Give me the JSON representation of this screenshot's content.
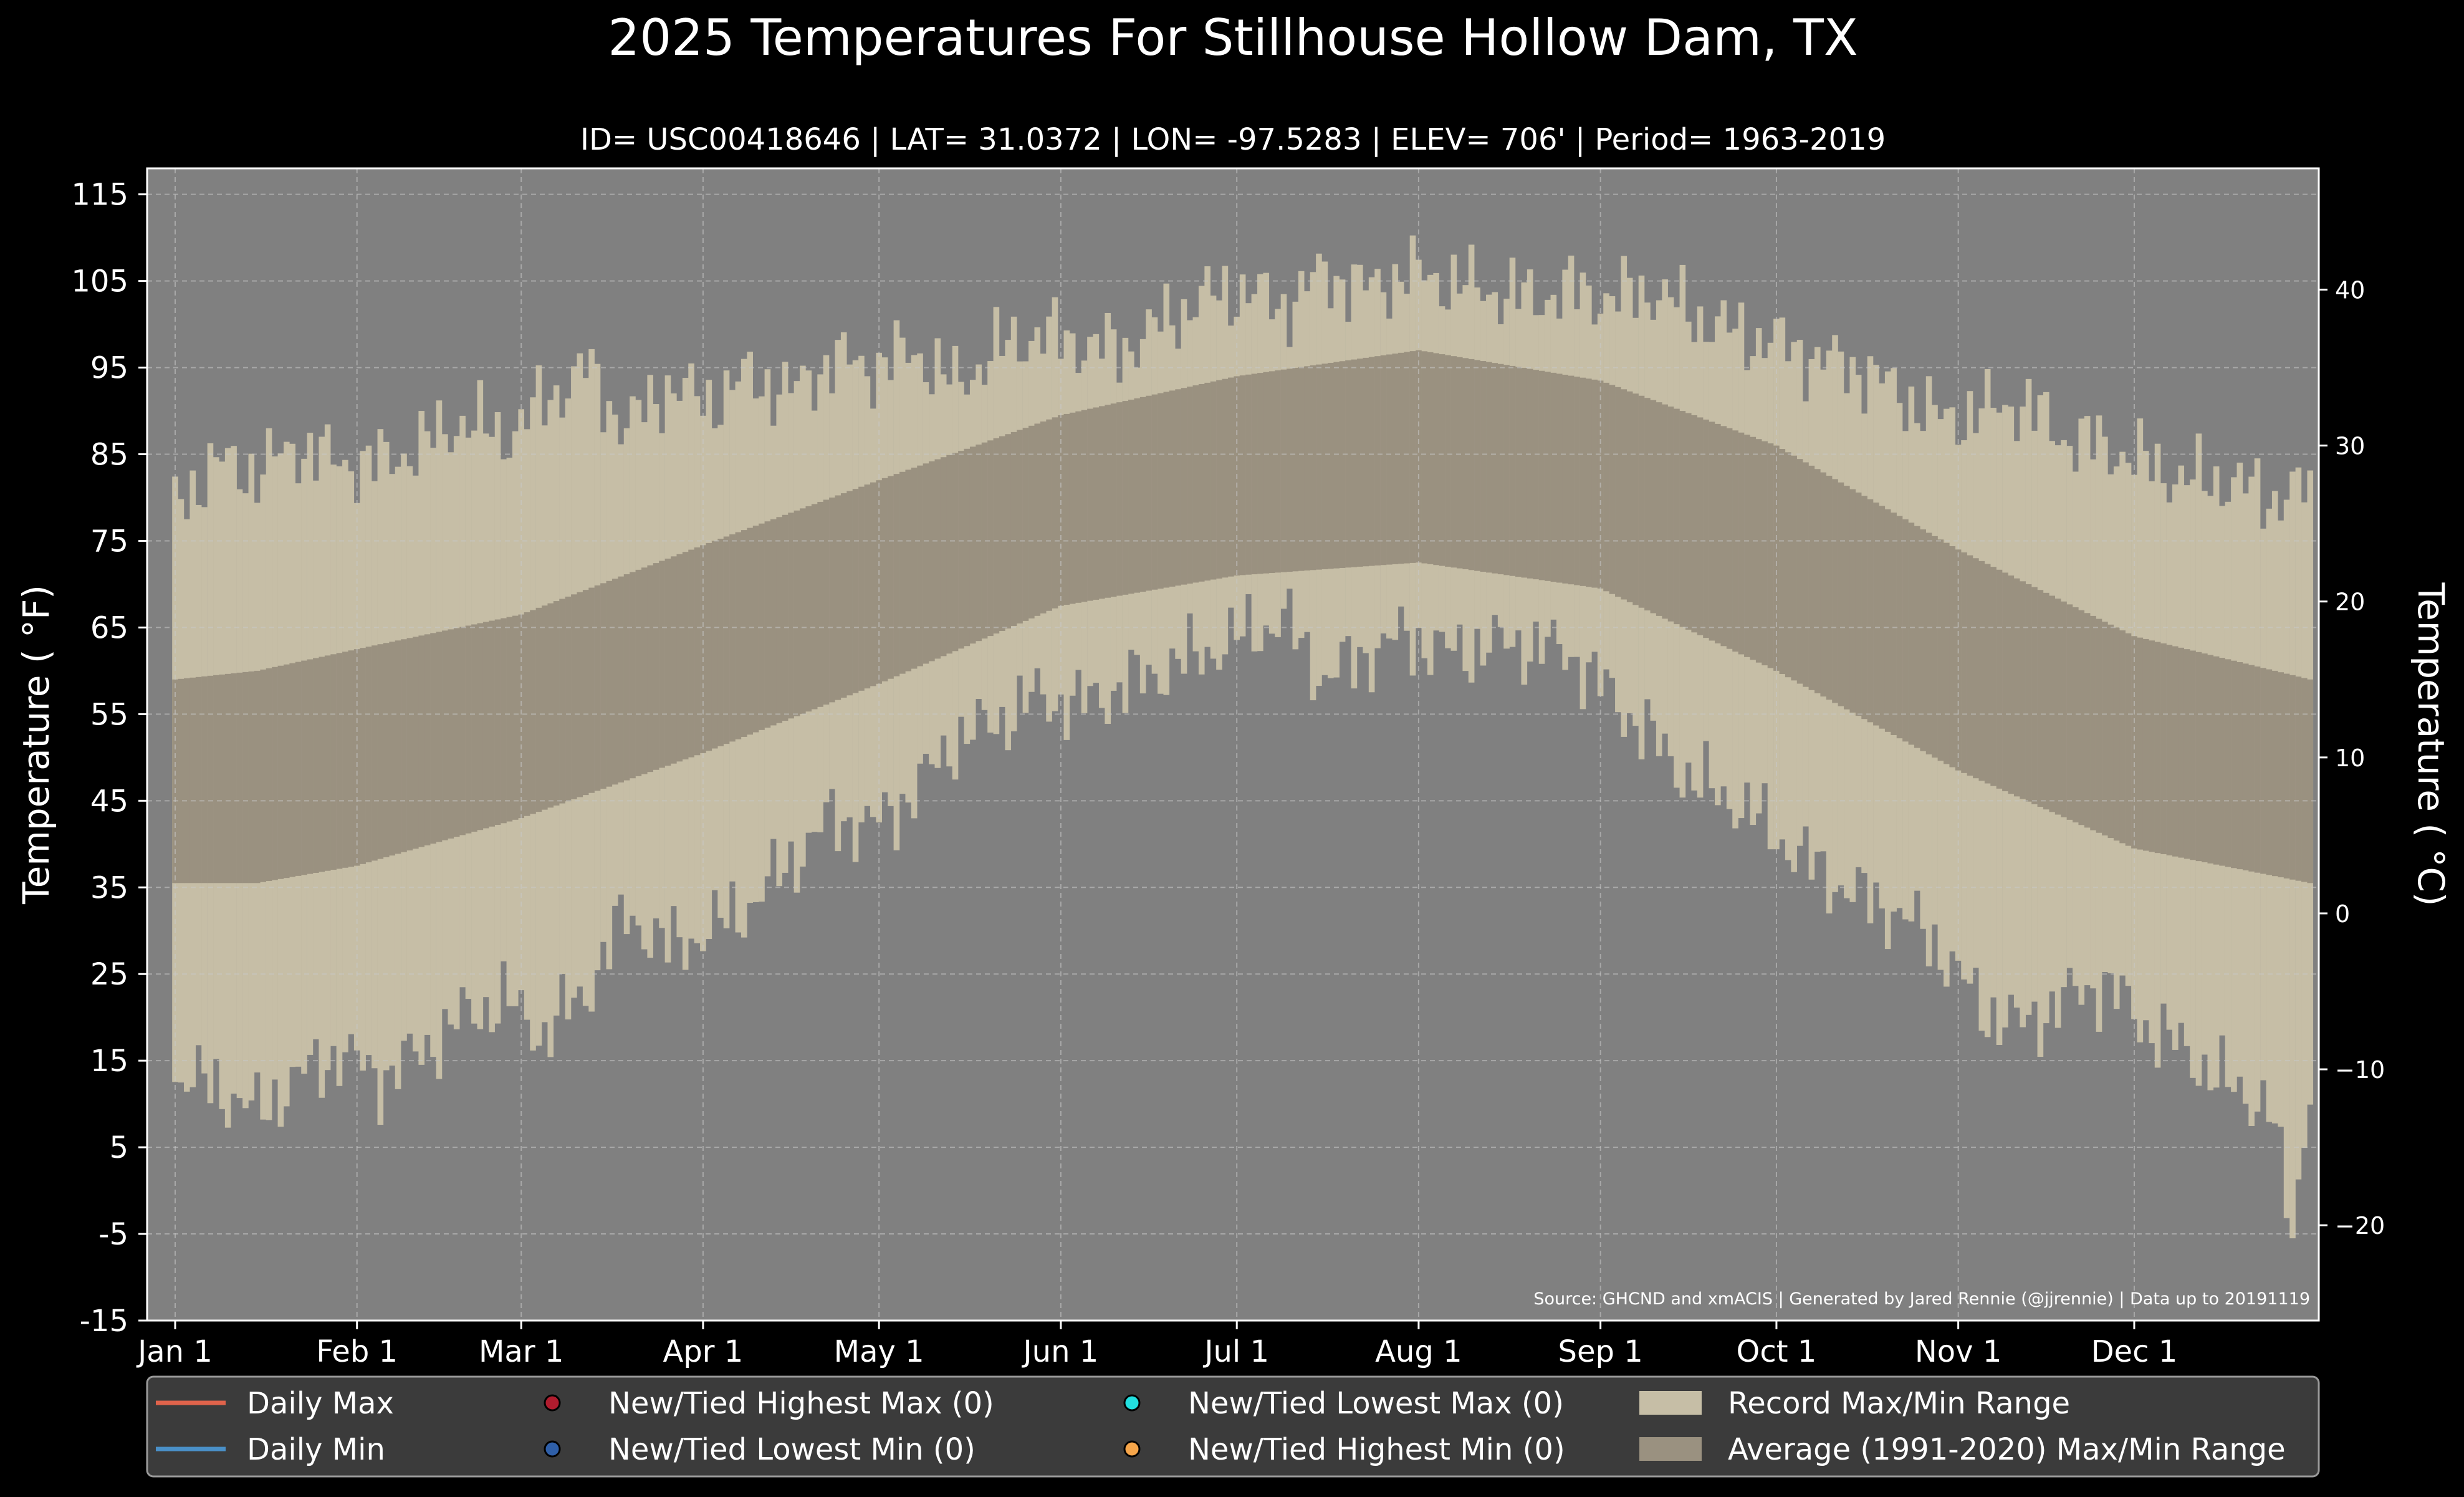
{
  "chart_data": {
    "type": "area",
    "title": "2025 Temperatures For Stillhouse Hollow Dam, TX",
    "subtitle": "ID= USC00418646 | LAT= 31.0372 | LON= -97.5283 | ELEV= 706' | Period= 1963-2019",
    "ylabel": "Temperature ( °F)",
    "ylabel_right": "Temperature ( °C)",
    "source": "Source: GHCND and xmACIS | Generated by Jared Rennie (@jjrennie) | Data up to 20191119",
    "ylim": [
      -15,
      118
    ],
    "yticks": [
      "115",
      "105",
      "95",
      "85",
      "75",
      "65",
      "55",
      "45",
      "35",
      "25",
      "15",
      "5",
      "-5",
      "-15"
    ],
    "yticks_c": [
      "40",
      "30",
      "20",
      "10",
      "0",
      "−10",
      "−20"
    ],
    "xticks": [
      {
        "label": "Jan 1",
        "day": 1
      },
      {
        "label": "Feb 1",
        "day": 32
      },
      {
        "label": "Mar 1",
        "day": 60
      },
      {
        "label": "Apr 1",
        "day": 91
      },
      {
        "label": "May 1",
        "day": 121
      },
      {
        "label": "Jun 1",
        "day": 152
      },
      {
        "label": "Jul 1",
        "day": 182
      },
      {
        "label": "Aug 1",
        "day": 213
      },
      {
        "label": "Sep 1",
        "day": 244
      },
      {
        "label": "Oct 1",
        "day": 274
      },
      {
        "label": "Nov 1",
        "day": 305
      },
      {
        "label": "Dec 1",
        "day": 335
      }
    ],
    "grid": true,
    "legend_position": "bottom",
    "colors": {
      "plot_bg": "#808080",
      "record_range": "#c6bea6",
      "average_range": "#9a9180",
      "daily_max": "#e0634b",
      "daily_min": "#4a90c8",
      "new_high_max": "#b01c2e",
      "new_low_min": "#2f5fa8",
      "new_low_max": "#22e0e0",
      "new_high_min": "#f5a54a"
    },
    "record_max": {
      "day": [
        1,
        8,
        15,
        22,
        29,
        36,
        43,
        50,
        57,
        64,
        71,
        78,
        85,
        92,
        99,
        106,
        113,
        120,
        127,
        134,
        141,
        148,
        155,
        162,
        169,
        176,
        183,
        190,
        197,
        204,
        211,
        218,
        225,
        232,
        239,
        246,
        253,
        260,
        267,
        274,
        281,
        288,
        295,
        302,
        309,
        316,
        323,
        330,
        337,
        344,
        351,
        358,
        365
      ],
      "values": [
        79,
        84,
        83,
        86,
        84,
        84,
        86,
        89,
        87,
        91,
        95,
        88,
        93,
        91,
        94,
        92,
        96,
        95,
        97,
        93,
        97,
        99,
        98,
        97,
        100,
        103,
        104,
        102,
        106,
        104,
        106,
        105,
        104,
        103,
        104,
        103,
        104,
        101,
        99,
        98,
        96,
        95,
        92,
        89,
        90,
        91,
        87,
        86,
        84,
        82,
        82,
        80,
        81
      ]
    },
    "record_min": {
      "day": [
        1,
        8,
        15,
        22,
        29,
        36,
        43,
        50,
        57,
        64,
        71,
        78,
        85,
        92,
        99,
        106,
        113,
        120,
        127,
        134,
        141,
        148,
        155,
        162,
        169,
        176,
        183,
        190,
        197,
        204,
        211,
        218,
        225,
        232,
        239,
        246,
        253,
        260,
        267,
        274,
        281,
        288,
        295,
        302,
        309,
        316,
        323,
        330,
        337,
        344,
        351,
        358,
        362,
        365
      ],
      "values": [
        13,
        12,
        9,
        13,
        16,
        13,
        16,
        20,
        22,
        18,
        23,
        32,
        28,
        30,
        33,
        38,
        43,
        42,
        46,
        52,
        54,
        57,
        56,
        58,
        60,
        62,
        64,
        66,
        59,
        62,
        64,
        62,
        63,
        63,
        62,
        57,
        52,
        47,
        45,
        41,
        37,
        34,
        32,
        28,
        21,
        19,
        22,
        24,
        19,
        16,
        12,
        10,
        -5,
        13
      ]
    },
    "average_max": {
      "day": [
        1,
        15,
        32,
        60,
        91,
        121,
        152,
        182,
        213,
        244,
        274,
        305,
        335,
        365
      ],
      "values": [
        59,
        60,
        62.5,
        66.5,
        74.5,
        82,
        89.5,
        94,
        97,
        93.5,
        86,
        74,
        64,
        59
      ]
    },
    "average_min": {
      "day": [
        1,
        15,
        32,
        60,
        91,
        121,
        152,
        182,
        213,
        244,
        274,
        305,
        335,
        365
      ],
      "values": [
        35.5,
        35.5,
        37.5,
        43,
        50.5,
        58.5,
        67.5,
        71,
        72.5,
        69.5,
        60,
        48.5,
        39.5,
        35.5
      ]
    },
    "legend": [
      {
        "key": "daily_max",
        "label": "Daily Max",
        "symbol": "line"
      },
      {
        "key": "daily_min",
        "label": "Daily Min",
        "symbol": "line"
      },
      {
        "key": "new_high_max",
        "label": "New/Tied Highest Max (0)",
        "symbol": "dot"
      },
      {
        "key": "new_low_min",
        "label": "New/Tied Lowest Min (0)",
        "symbol": "dot"
      },
      {
        "key": "new_low_max",
        "label": "New/Tied Lowest Max (0)",
        "symbol": "dot"
      },
      {
        "key": "new_high_min",
        "label": "New/Tied Highest Min (0)",
        "symbol": "dot"
      },
      {
        "key": "record_range",
        "label": "Record Max/Min Range",
        "symbol": "patch"
      },
      {
        "key": "average_range",
        "label": "Average (1991-2020) Max/Min Range",
        "symbol": "patch"
      }
    ]
  }
}
